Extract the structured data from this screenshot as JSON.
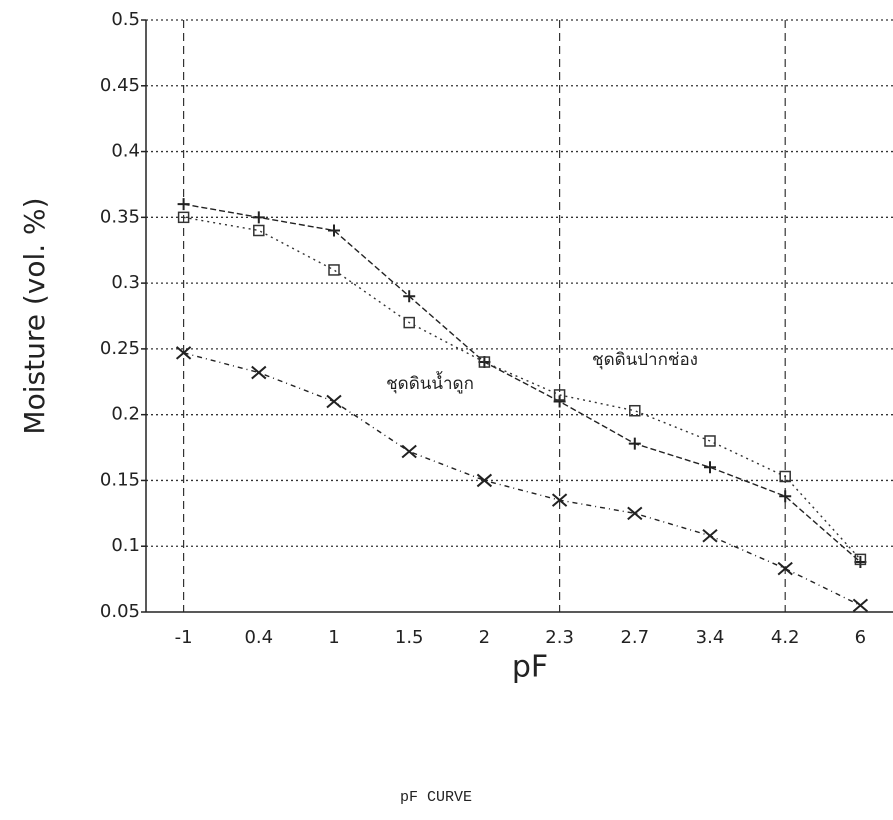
{
  "chart_data": {
    "type": "line",
    "x_label": "pF",
    "y_label": "Moisture (vol. %)",
    "caption": "pF CURVE",
    "categories": [
      "-1",
      "0.4",
      "1",
      "1.5",
      "2",
      "2.3",
      "2.7",
      "3.4",
      "4.2",
      "6"
    ],
    "series": [
      {
        "color": "#222222",
        "marker": "plus",
        "dash": "6,3",
        "values": [
          0.36,
          0.35,
          0.34,
          0.29,
          0.24,
          0.21,
          0.178,
          0.16,
          0.138,
          0.088
        ]
      },
      {
        "name": "ชุดดินปากช่อง",
        "color": "#333333",
        "marker": "square",
        "dash": "2,4",
        "values": [
          0.35,
          0.34,
          0.31,
          0.27,
          0.24,
          0.215,
          0.203,
          0.18,
          0.153,
          0.09
        ]
      },
      {
        "name": "ชุดดินน้ำดูก",
        "color": "#222222",
        "marker": "x",
        "dash": "5,4,1,4",
        "values": [
          0.247,
          0.232,
          0.21,
          0.172,
          0.15,
          0.135,
          0.125,
          0.108,
          0.083,
          0.055
        ]
      }
    ],
    "ylim": [
      0.05,
      0.5
    ],
    "yticks": [
      0.05,
      0.1,
      0.15,
      0.2,
      0.25,
      0.3,
      0.35,
      0.4,
      0.45,
      0.5
    ],
    "grid": true
  }
}
